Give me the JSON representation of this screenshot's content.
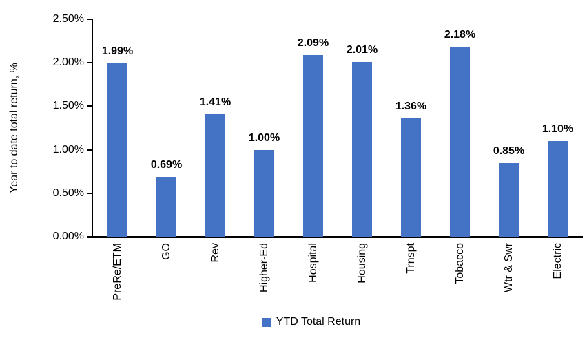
{
  "chart_data": {
    "type": "bar",
    "title": "",
    "ylabel": "Year to date total return, %",
    "xlabel": "",
    "categories": [
      "PreRe/ETM",
      "GO",
      "Rev",
      "Higher-Ed",
      "Hospital",
      "Housing",
      "Trnspt",
      "Tobacco",
      "Wtr & Swr",
      "Electric"
    ],
    "series": [
      {
        "name": "YTD Total Return",
        "values": [
          1.99,
          0.69,
          1.41,
          1.0,
          2.09,
          2.01,
          1.36,
          2.18,
          0.85,
          1.1
        ]
      }
    ],
    "value_labels": [
      "1.99%",
      "0.69%",
      "1.41%",
      "1.00%",
      "2.09%",
      "2.01%",
      "1.36%",
      "2.18%",
      "0.85%",
      "1.10%"
    ],
    "y_ticks": [
      "0.00%",
      "0.50%",
      "1.00%",
      "1.50%",
      "2.00%",
      "2.50%"
    ],
    "ylim": [
      0,
      2.5
    ],
    "grid": false,
    "legend": {
      "label": "YTD Total Return",
      "position": "bottom"
    },
    "bar_color": "#4472C4",
    "axis_color": "#000000",
    "label_color": "#000000"
  }
}
